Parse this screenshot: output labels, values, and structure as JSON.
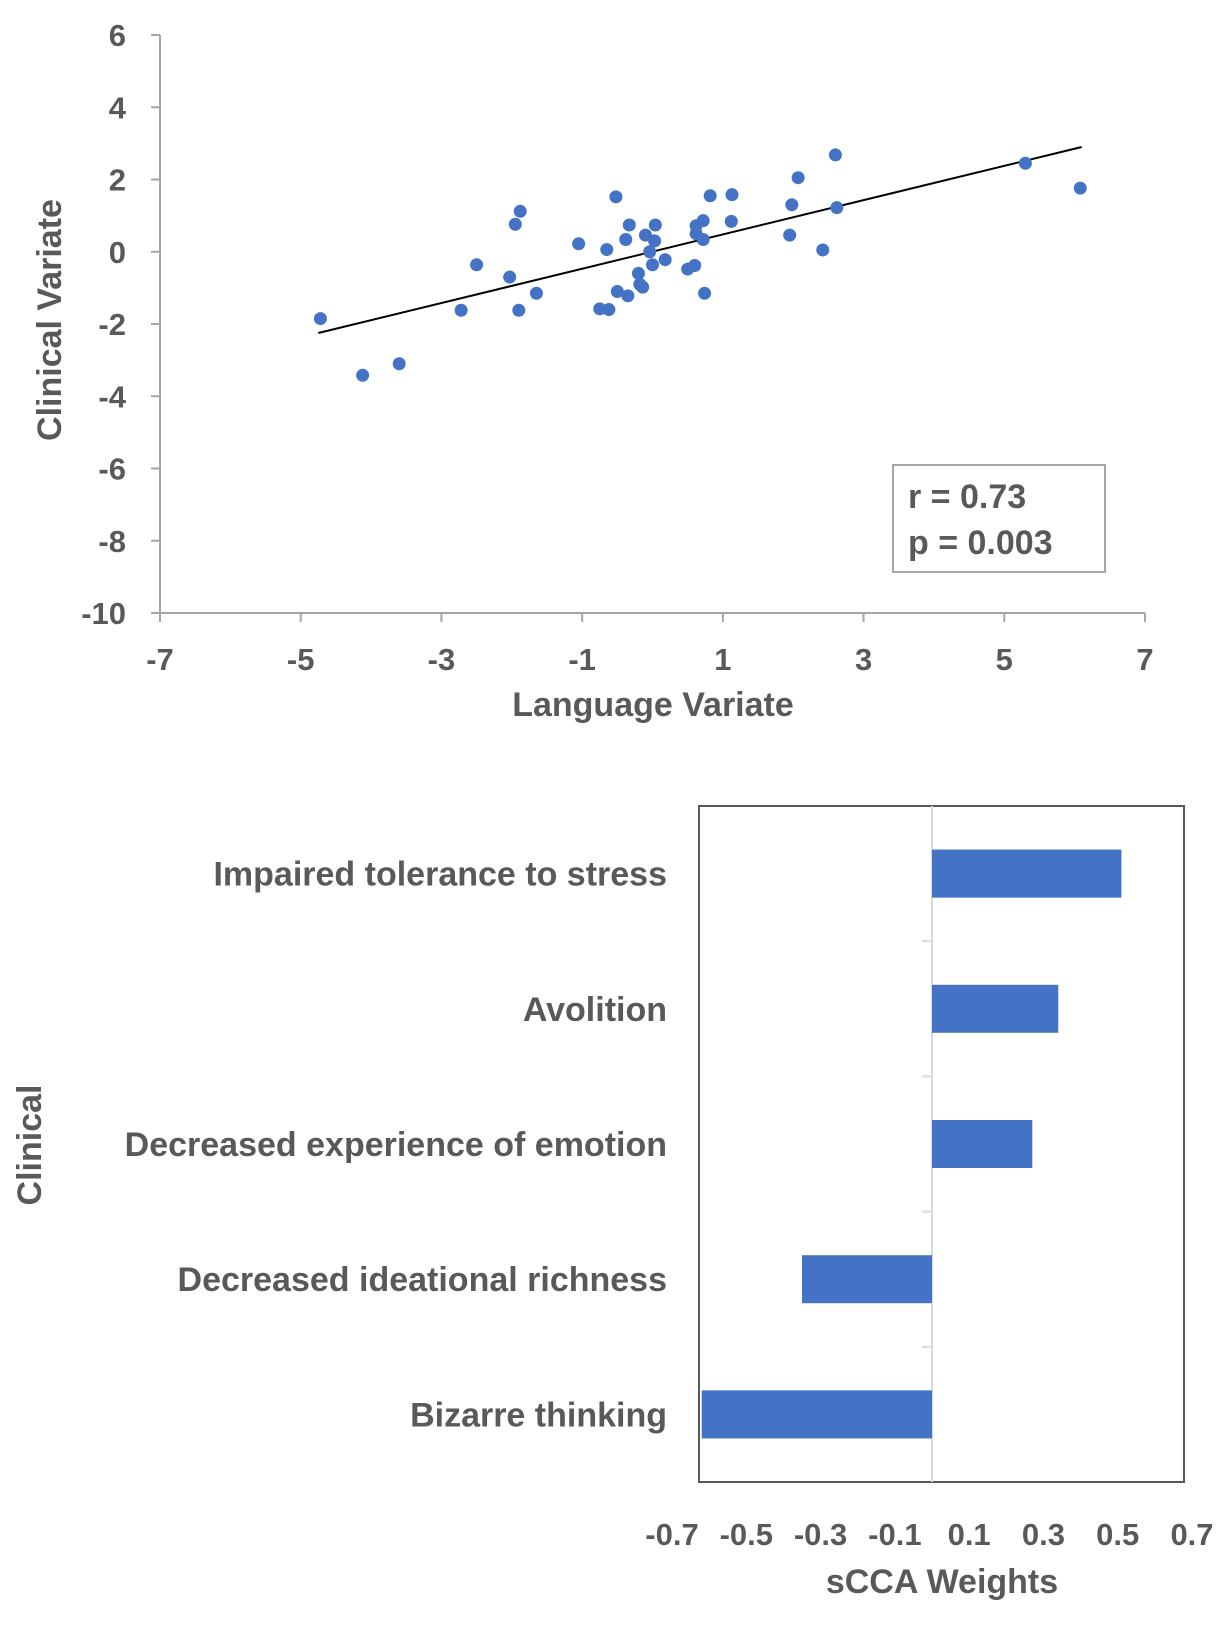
{
  "chart_data": [
    {
      "type": "scatter",
      "title": "",
      "xlabel": "Language Variate",
      "ylabel": "Clinical Variate",
      "xlim": [
        -7,
        7
      ],
      "ylim": [
        -10,
        6
      ],
      "xticks": [
        -7,
        -5,
        -3,
        -1,
        1,
        3,
        5,
        7
      ],
      "yticks": [
        6,
        4,
        2,
        0,
        -2,
        -4,
        -6,
        -8,
        -10
      ],
      "xtick_labels": [
        "-7",
        "-5",
        "-3",
        "-1",
        "1",
        "3",
        "5",
        "7"
      ],
      "ytick_labels": [
        "6",
        "4",
        "2",
        "0",
        "-2",
        "-4",
        "-6",
        "-8",
        "-10"
      ],
      "grid": false,
      "point_color": "#4472c4",
      "trendline": {
        "x": [
          -4.75,
          6.1
        ],
        "y": [
          -2.25,
          2.9
        ],
        "color": "#000000"
      },
      "annotation": {
        "lines": [
          "r = 0.73",
          "p = 0.003"
        ],
        "position": "lower-right"
      },
      "points": [
        [
          -4.72,
          -1.85
        ],
        [
          -4.12,
          -3.42
        ],
        [
          -3.6,
          -3.1
        ],
        [
          -2.72,
          -1.62
        ],
        [
          -2.5,
          -0.36
        ],
        [
          -2.03,
          -0.7
        ],
        [
          -1.95,
          0.76
        ],
        [
          -1.88,
          1.12
        ],
        [
          -1.9,
          -1.62
        ],
        [
          -1.65,
          -1.15
        ],
        [
          -1.05,
          0.22
        ],
        [
          -0.75,
          -1.58
        ],
        [
          -0.62,
          -1.6
        ],
        [
          -0.65,
          0.06
        ],
        [
          -0.52,
          1.52
        ],
        [
          -0.5,
          -1.1
        ],
        [
          -0.38,
          0.34
        ],
        [
          -0.33,
          0.74
        ],
        [
          -0.35,
          -1.22
        ],
        [
          -0.2,
          -0.6
        ],
        [
          -0.18,
          -0.9
        ],
        [
          -0.14,
          -0.98
        ],
        [
          -0.1,
          0.46
        ],
        [
          -0.04,
          0.0
        ],
        [
          0.0,
          -0.36
        ],
        [
          0.04,
          0.74
        ],
        [
          0.03,
          0.3
        ],
        [
          0.18,
          -0.22
        ],
        [
          0.5,
          -0.48
        ],
        [
          0.6,
          -0.38
        ],
        [
          0.62,
          0.5
        ],
        [
          0.62,
          0.72
        ],
        [
          0.72,
          0.86
        ],
        [
          0.72,
          0.34
        ],
        [
          0.74,
          -1.15
        ],
        [
          0.82,
          1.55
        ],
        [
          1.12,
          0.84
        ],
        [
          1.13,
          1.58
        ],
        [
          1.95,
          0.46
        ],
        [
          1.98,
          1.3
        ],
        [
          2.07,
          2.05
        ],
        [
          2.42,
          0.05
        ],
        [
          2.6,
          2.68
        ],
        [
          2.62,
          1.22
        ],
        [
          5.3,
          2.45
        ],
        [
          6.08,
          1.76
        ]
      ]
    },
    {
      "type": "bar",
      "orientation": "horizontal",
      "title": "",
      "xlabel": "sCCA Weights",
      "ylabel": "Clinical",
      "xlim": [
        -0.7,
        0.7
      ],
      "xticks": [
        -0.7,
        -0.5,
        -0.3,
        -0.1,
        0.1,
        0.3,
        0.5,
        0.7
      ],
      "xtick_labels": [
        "-0.7",
        "-0.5",
        "-0.3",
        "-0.1",
        "0.1",
        "0.3",
        "0.5",
        "0.7"
      ],
      "bar_color": "#4472c4",
      "categories": [
        "Impaired tolerance to stress",
        "Avolition",
        "Decreased experience of emotion",
        "Decreased ideational richness",
        "Bizarre thinking"
      ],
      "values": [
        0.51,
        0.34,
        0.27,
        -0.35,
        -0.62
      ]
    }
  ]
}
